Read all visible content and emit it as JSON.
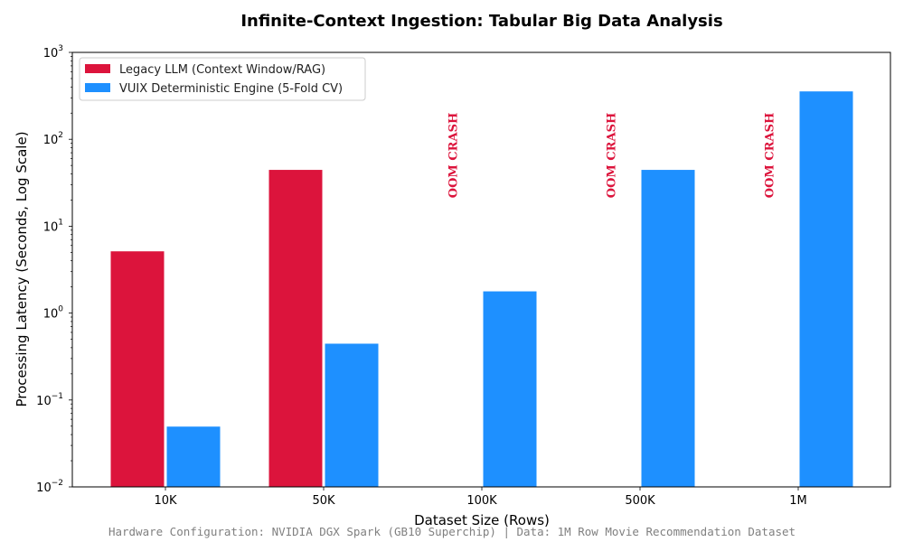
{
  "chart_data": {
    "type": "bar",
    "title": "Infinite-Context Ingestion: Tabular Big Data Analysis",
    "xlabel": "Dataset Size (Rows)",
    "ylabel": "Processing Latency (Seconds, Log Scale)",
    "yscale": "log",
    "ylim": [
      0.01,
      1000
    ],
    "yticks": [
      {
        "base": "10",
        "exp": "−2",
        "value": 0.01
      },
      {
        "base": "10",
        "exp": "−1",
        "value": 0.1
      },
      {
        "base": "10",
        "exp": "0",
        "value": 1
      },
      {
        "base": "10",
        "exp": "1",
        "value": 10
      },
      {
        "base": "10",
        "exp": "2",
        "value": 100
      },
      {
        "base": "10",
        "exp": "3",
        "value": 1000
      }
    ],
    "categories": [
      "10K",
      "50K",
      "100K",
      "500K",
      "1M"
    ],
    "series": [
      {
        "name": "Legacy LLM (Context Window/RAG)",
        "color": "#DC143C",
        "values": [
          5.2,
          45,
          null,
          null,
          null
        ]
      },
      {
        "name": "VUIX Deterministic Engine (5-Fold CV)",
        "color": "#1E90FF",
        "values": [
          0.05,
          0.45,
          1.8,
          45,
          360
        ]
      }
    ],
    "annotations": [
      {
        "category": "100K",
        "text": "OOM CRASH",
        "color": "#DC143C"
      },
      {
        "category": "500K",
        "text": "OOM CRASH",
        "color": "#DC143C"
      },
      {
        "category": "1M",
        "text": "OOM CRASH",
        "color": "#DC143C"
      }
    ],
    "legend": "upper-left",
    "grid": false
  },
  "footer": "Hardware Configuration: NVIDIA DGX Spark (GB10 Superchip) | Data: 1M Row Movie Recommendation Dataset"
}
